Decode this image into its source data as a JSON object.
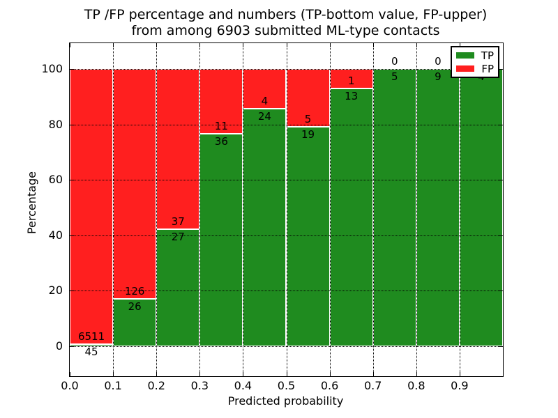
{
  "chart_data": {
    "type": "bar",
    "stacked": true,
    "title_line1": "TP /FP percentage and numbers (TP-bottom value, FP-upper)",
    "title_line2": "from among 6903 submitted ML-type contacts",
    "xlabel": "Predicted probability",
    "ylabel": "Percentage",
    "x_tick_labels": [
      "0.0",
      "0.1",
      "0.2",
      "0.3",
      "0.4",
      "0.5",
      "0.6",
      "0.7",
      "0.8",
      "0.9"
    ],
    "y_tick_values": [
      0,
      20,
      40,
      60,
      80,
      100
    ],
    "xlim": [
      0.0,
      1.0
    ],
    "ylim_percent": [
      -10.8,
      109.4
    ],
    "bin_width": 0.1,
    "bin_starts": [
      0.0,
      0.1,
      0.2,
      0.3,
      0.4,
      0.5,
      0.6,
      0.7,
      0.8,
      0.9
    ],
    "series": [
      {
        "name": "TP",
        "color": "#1f8b1f",
        "values": [
          45,
          26,
          27,
          36,
          24,
          19,
          13,
          5,
          9,
          4
        ]
      },
      {
        "name": "FP",
        "color": "#ff1f1f",
        "values": [
          6511,
          126,
          37,
          11,
          4,
          5,
          1,
          0,
          0,
          0
        ]
      }
    ],
    "legend": {
      "position": "upper right",
      "entries": [
        "TP",
        "FP"
      ]
    },
    "grid": {
      "style": "dotted",
      "color": "#000000"
    },
    "colors": {
      "tp": "#1f8b1f",
      "fp": "#ff1f1f",
      "bar_edge": "#ffffff",
      "background": "#ffffff"
    }
  }
}
